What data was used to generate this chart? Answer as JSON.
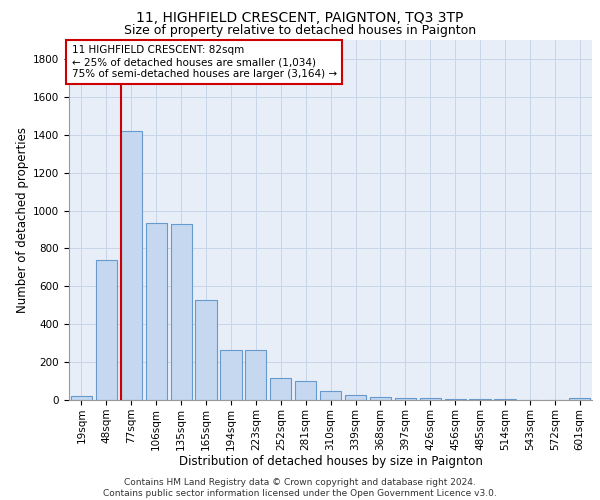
{
  "title_line1": "11, HIGHFIELD CRESCENT, PAIGNTON, TQ3 3TP",
  "title_line2": "Size of property relative to detached houses in Paignton",
  "xlabel": "Distribution of detached houses by size in Paignton",
  "ylabel": "Number of detached properties",
  "categories": [
    "19sqm",
    "48sqm",
    "77sqm",
    "106sqm",
    "135sqm",
    "165sqm",
    "194sqm",
    "223sqm",
    "252sqm",
    "281sqm",
    "310sqm",
    "339sqm",
    "368sqm",
    "397sqm",
    "426sqm",
    "456sqm",
    "485sqm",
    "514sqm",
    "543sqm",
    "572sqm",
    "601sqm"
  ],
  "values": [
    20,
    740,
    1420,
    935,
    930,
    530,
    265,
    265,
    115,
    100,
    48,
    28,
    18,
    12,
    9,
    7,
    4,
    3,
    2,
    2,
    8
  ],
  "bar_color": "#c5d8f0",
  "bar_edge_color": "#6699cc",
  "annotation_text": "11 HIGHFIELD CRESCENT: 82sqm\n← 25% of detached houses are smaller (1,034)\n75% of semi-detached houses are larger (3,164) →",
  "annotation_box_color": "white",
  "annotation_box_edge_color": "#cc0000",
  "red_line_color": "#cc0000",
  "ylim": [
    0,
    1900
  ],
  "yticks": [
    0,
    200,
    400,
    600,
    800,
    1000,
    1200,
    1400,
    1600,
    1800
  ],
  "grid_color": "#c8d4e8",
  "background_color": "#e8eef8",
  "footer_text": "Contains HM Land Registry data © Crown copyright and database right 2024.\nContains public sector information licensed under the Open Government Licence v3.0.",
  "title_fontsize": 10,
  "subtitle_fontsize": 9,
  "axis_label_fontsize": 8.5,
  "tick_fontsize": 7.5,
  "annotation_fontsize": 7.5,
  "footer_fontsize": 6.5
}
